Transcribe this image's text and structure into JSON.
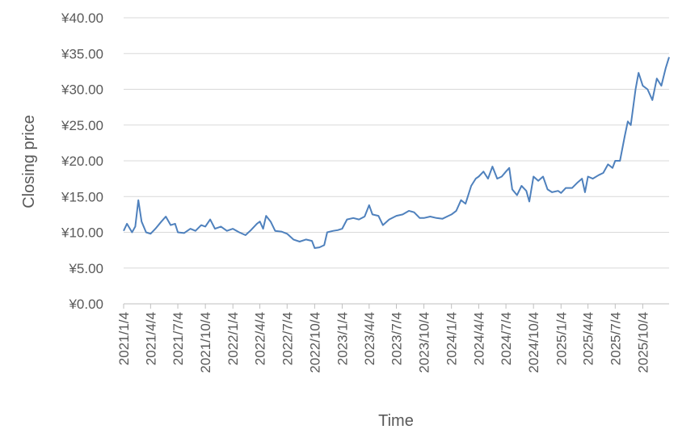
{
  "chart_data": {
    "type": "line",
    "x_title": "Time",
    "y_title": "Closing price",
    "color": "#4f81bd",
    "grid": true,
    "xlim": [
      "2021/1/4",
      "2025/12/31"
    ],
    "xticks": [
      "2021/1/4",
      "2021/4/4",
      "2021/7/4",
      "2021/10/4",
      "2022/1/4",
      "2022/4/4",
      "2022/7/4",
      "2022/10/4",
      "2023/1/4",
      "2023/4/4",
      "2023/7/4",
      "2023/10/4",
      "2024/1/4",
      "2024/4/4",
      "2024/7/4",
      "2024/10/4",
      "2025/1/4",
      "2025/4/4",
      "2025/7/4",
      "2025/10/4"
    ],
    "ylim": [
      0,
      40
    ],
    "yticks": [
      {
        "value": 0,
        "label": "¥0.00"
      },
      {
        "value": 5,
        "label": "¥5.00"
      },
      {
        "value": 10,
        "label": "¥10.00"
      },
      {
        "value": 15,
        "label": "¥15.00"
      },
      {
        "value": 20,
        "label": "¥20.00"
      },
      {
        "value": 25,
        "label": "¥25.00"
      },
      {
        "value": 30,
        "label": "¥30.00"
      },
      {
        "value": 35,
        "label": "¥35.00"
      },
      {
        "value": 40,
        "label": "¥40.00"
      }
    ],
    "x": [
      "2021/1/4",
      "2021/1/15",
      "2021/2/1",
      "2021/2/12",
      "2021/2/22",
      "2021/3/5",
      "2021/3/20",
      "2021/4/4",
      "2021/4/20",
      "2021/5/10",
      "2021/5/25",
      "2021/6/10",
      "2021/6/25",
      "2021/7/4",
      "2021/7/25",
      "2021/8/15",
      "2021/9/1",
      "2021/9/20",
      "2021/10/4",
      "2021/10/20",
      "2021/11/5",
      "2021/11/25",
      "2021/12/15",
      "2022/1/4",
      "2022/1/25",
      "2022/2/15",
      "2022/3/5",
      "2022/3/25",
      "2022/4/4",
      "2022/4/15",
      "2022/4/25",
      "2022/5/10",
      "2022/5/25",
      "2022/6/15",
      "2022/7/4",
      "2022/7/25",
      "2022/8/15",
      "2022/9/5",
      "2022/9/25",
      "2022/10/4",
      "2022/10/20",
      "2022/11/5",
      "2022/11/15",
      "2022/12/5",
      "2022/12/20",
      "2023/1/4",
      "2023/1/20",
      "2023/2/10",
      "2023/3/1",
      "2023/3/20",
      "2023/4/4",
      "2023/4/15",
      "2023/5/5",
      "2023/5/20",
      "2023/6/10",
      "2023/7/4",
      "2023/7/25",
      "2023/8/15",
      "2023/9/1",
      "2023/9/20",
      "2023/10/4",
      "2023/10/25",
      "2023/11/15",
      "2023/12/5",
      "2023/12/25",
      "2024/1/4",
      "2024/1/20",
      "2024/2/5",
      "2024/2/20",
      "2024/3/10",
      "2024/3/25",
      "2024/4/4",
      "2024/4/20",
      "2024/5/5",
      "2024/5/20",
      "2024/6/5",
      "2024/6/20",
      "2024/7/4",
      "2024/7/15",
      "2024/7/25",
      "2024/8/10",
      "2024/8/25",
      "2024/9/10",
      "2024/9/20",
      "2024/10/4",
      "2024/10/20",
      "2024/11/5",
      "2024/11/20",
      "2024/12/5",
      "2024/12/25",
      "2025/1/4",
      "2025/1/20",
      "2025/2/10",
      "2025/3/1",
      "2025/3/15",
      "2025/3/25",
      "2025/4/4",
      "2025/4/20",
      "2025/5/10",
      "2025/5/25",
      "2025/6/10",
      "2025/6/25",
      "2025/7/4",
      "2025/7/20",
      "2025/8/5",
      "2025/8/15",
      "2025/8/25",
      "2025/9/10",
      "2025/9/20",
      "2025/10/4",
      "2025/10/20",
      "2025/11/5",
      "2025/11/20",
      "2025/12/5",
      "2025/12/20",
      "2025/12/31"
    ],
    "values": [
      10.2,
      11.2,
      10.0,
      10.8,
      14.5,
      11.5,
      10.0,
      9.8,
      10.5,
      11.5,
      12.2,
      11.0,
      11.2,
      10.0,
      9.9,
      10.5,
      10.2,
      11.0,
      10.8,
      11.8,
      10.5,
      10.8,
      10.2,
      10.5,
      10.0,
      9.6,
      10.3,
      11.2,
      11.5,
      10.5,
      12.3,
      11.5,
      10.2,
      10.1,
      9.8,
      9.0,
      8.7,
      9.0,
      8.8,
      7.8,
      7.9,
      8.2,
      10.0,
      10.2,
      10.3,
      10.5,
      11.8,
      12.0,
      11.8,
      12.2,
      13.8,
      12.5,
      12.3,
      11.0,
      11.8,
      12.3,
      12.5,
      13.0,
      12.8,
      12.0,
      12.0,
      12.2,
      12.0,
      11.9,
      12.3,
      12.5,
      13.0,
      14.5,
      14.0,
      16.5,
      17.5,
      17.8,
      18.5,
      17.5,
      19.2,
      17.5,
      17.8,
      18.5,
      19.0,
      16.0,
      15.2,
      16.5,
      15.8,
      14.3,
      17.8,
      17.2,
      17.8,
      16.0,
      15.6,
      15.8,
      15.5,
      16.2,
      16.2,
      17.0,
      17.5,
      15.6,
      17.8,
      17.5,
      18.0,
      18.3,
      19.5,
      19.0,
      20.0,
      20.0,
      23.5,
      25.5,
      25.0,
      30.0,
      32.3,
      30.5,
      30.0,
      28.5,
      31.5,
      30.5,
      33.0,
      34.5
    ]
  }
}
